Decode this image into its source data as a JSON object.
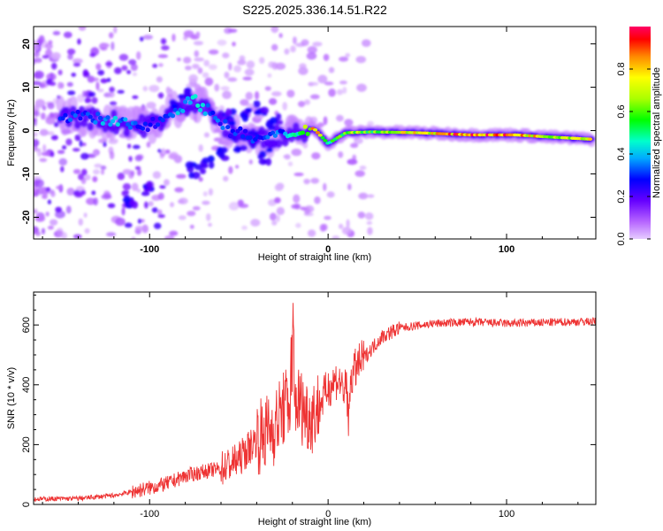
{
  "title": "S225.2025.336.14.51.R22",
  "chart_data": [
    {
      "type": "heatmap",
      "xlabel": "Height of straight line (km)",
      "ylabel": "Frequency (Hz)",
      "xlim": [
        -165,
        150
      ],
      "ylim": [
        -25,
        24
      ],
      "xticks": [
        -100,
        0,
        100
      ],
      "yticks": [
        -20,
        -10,
        0,
        10,
        20
      ],
      "colorbar": {
        "label": "Normalized spectral amplitude",
        "range": [
          0,
          1
        ],
        "ticks": [
          "0.0",
          "0.2",
          "0.4",
          "0.6",
          "0.8"
        ]
      },
      "ridge": [
        {
          "x": -150,
          "f": 3.5,
          "a": 0.3
        },
        {
          "x": -135,
          "f": 3.0,
          "a": 0.35
        },
        {
          "x": -120,
          "f": 2.0,
          "a": 0.4
        },
        {
          "x": -105,
          "f": 1.0,
          "a": 0.35
        },
        {
          "x": -95,
          "f": 2.0,
          "a": 0.3
        },
        {
          "x": -85,
          "f": 5.0,
          "a": 0.4
        },
        {
          "x": -75,
          "f": 7.0,
          "a": 0.45
        },
        {
          "x": -65,
          "f": 4.0,
          "a": 0.35
        },
        {
          "x": -55,
          "f": 0.0,
          "a": 0.3
        },
        {
          "x": -40,
          "f": -2.0,
          "a": 0.3
        },
        {
          "x": -25,
          "f": -1.0,
          "a": 0.35
        },
        {
          "x": -15,
          "f": 0.0,
          "a": 0.55
        },
        {
          "x": -8,
          "f": 0.5,
          "a": 0.9
        },
        {
          "x": 0,
          "f": -3.0,
          "a": 0.5
        },
        {
          "x": 10,
          "f": -0.5,
          "a": 0.7
        },
        {
          "x": 25,
          "f": -0.3,
          "a": 0.65
        },
        {
          "x": 50,
          "f": -0.5,
          "a": 0.8
        },
        {
          "x": 80,
          "f": -1.0,
          "a": 0.95
        },
        {
          "x": 105,
          "f": -1.0,
          "a": 0.9
        },
        {
          "x": 125,
          "f": -1.5,
          "a": 0.75
        },
        {
          "x": 148,
          "f": -2.0,
          "a": 0.85
        }
      ]
    },
    {
      "type": "line",
      "xlabel": "Height of straight line (km)",
      "ylabel": "SNR (10 * v/v)",
      "xlim": [
        -165,
        150
      ],
      "ylim": [
        0,
        710
      ],
      "xticks": [
        -100,
        0,
        100
      ],
      "yticks": [
        0,
        200,
        400,
        600
      ],
      "color": "#ee3333",
      "x": [
        -165,
        -140,
        -120,
        -100,
        -90,
        -80,
        -70,
        -60,
        -50,
        -40,
        -30,
        -25,
        -20,
        -15,
        -10,
        -5,
        0,
        5,
        10,
        15,
        20,
        30,
        40,
        60,
        80,
        100,
        120,
        150
      ],
      "values": [
        18,
        20,
        30,
        55,
        70,
        95,
        110,
        120,
        150,
        220,
        260,
        320,
        360,
        330,
        290,
        330,
        390,
        420,
        380,
        450,
        490,
        560,
        590,
        605,
        610,
        605,
        608,
        612
      ]
    }
  ]
}
